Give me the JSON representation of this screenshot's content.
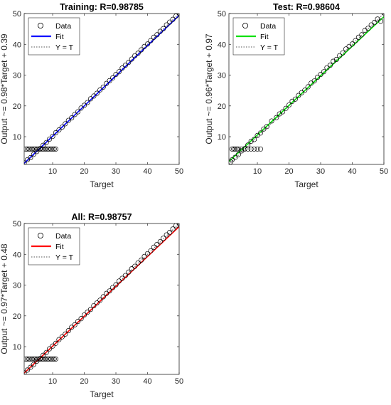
{
  "chart_data": [
    {
      "type": "scatter",
      "title": "Training: R=0.98785",
      "xlabel": "Target",
      "ylabel": "Output ~= 0.98*Target + 0.39",
      "xlim": [
        1,
        50
      ],
      "ylim": [
        1,
        50
      ],
      "xticks": [
        10,
        20,
        30,
        40,
        50
      ],
      "yticks": [
        10,
        20,
        30,
        40,
        50
      ],
      "legend": {
        "placement": "top-left",
        "entries": [
          "Data",
          "Fit",
          "Y = T"
        ]
      },
      "fit_color": "#0000ff",
      "fit": {
        "slope": 0.98,
        "intercept": 0.39
      },
      "series": [
        {
          "name": "Data",
          "x": [
            1,
            2,
            3,
            4,
            5,
            6,
            7,
            8,
            9,
            10,
            11,
            12,
            13,
            14,
            15,
            16,
            17,
            18,
            19,
            20,
            21,
            22,
            23,
            24,
            25,
            26,
            27,
            28,
            29,
            30,
            31,
            32,
            33,
            34,
            35,
            36,
            37,
            38,
            39,
            40,
            41,
            42,
            43,
            44,
            45,
            46,
            47,
            48,
            49,
            50,
            1.5,
            2,
            2.5,
            3,
            3.5,
            4,
            4.5,
            5,
            5.5,
            6,
            6.5,
            7,
            7.5,
            8,
            8.5,
            9,
            9.5,
            10,
            10.5,
            11
          ],
          "y": [
            1.5,
            2.5,
            3.2,
            4.3,
            5.2,
            6.1,
            7.2,
            8.1,
            9.2,
            10.1,
            11.3,
            12.2,
            13.1,
            14.2,
            15.3,
            16.1,
            17.2,
            18.1,
            19.3,
            20.2,
            21.1,
            22.3,
            23.2,
            24.1,
            25.2,
            26.1,
            27.3,
            28.2,
            29.1,
            30.2,
            31.1,
            32.3,
            33.2,
            34.1,
            35.2,
            36.3,
            37.1,
            38.2,
            39.3,
            40.1,
            41.2,
            42.3,
            43.1,
            44.2,
            45.1,
            46.3,
            47.2,
            48.1,
            49.2,
            50,
            6,
            6,
            6,
            6,
            6,
            6,
            6,
            6,
            6,
            6,
            6,
            6,
            6,
            6,
            6,
            6,
            6,
            6,
            6,
            6
          ]
        }
      ]
    },
    {
      "type": "scatter",
      "title": "Test: R=0.98604",
      "xlabel": "Target",
      "ylabel": "Output ~= 0.96*Target + 0.97",
      "xlim": [
        1,
        50
      ],
      "ylim": [
        1,
        50
      ],
      "xticks": [
        10,
        20,
        30,
        40,
        50
      ],
      "yticks": [
        10,
        20,
        30,
        40,
        50
      ],
      "legend": {
        "placement": "top-left",
        "entries": [
          "Data",
          "Fit",
          "Y = T"
        ]
      },
      "fit_color": "#00e000",
      "fit": {
        "slope": 0.96,
        "intercept": 0.97
      },
      "series": [
        {
          "name": "Data",
          "x": [
            1.5,
            2,
            3,
            4,
            5,
            6,
            7,
            8,
            9,
            10,
            11,
            12,
            13,
            14.5,
            16,
            17,
            18,
            19,
            20,
            21,
            22,
            23,
            24,
            25,
            26,
            27,
            28,
            29,
            30,
            31,
            32,
            33,
            34,
            35,
            36,
            37,
            38,
            39,
            40,
            41,
            42,
            43,
            44,
            45,
            46,
            47,
            48,
            49,
            50,
            2,
            2.5,
            3,
            3.5,
            4,
            5,
            6,
            7,
            8,
            9,
            10,
            11
          ],
          "y": [
            1.8,
            2.5,
            3.3,
            4.2,
            5.4,
            6.1,
            7.3,
            8.5,
            9.1,
            10.4,
            11.2,
            12.5,
            13.3,
            15.1,
            16.2,
            17.4,
            18.1,
            19.2,
            20.3,
            21.5,
            22.2,
            23.4,
            24.3,
            25.1,
            26.2,
            27.4,
            28.1,
            29.3,
            30.2,
            31.1,
            32.4,
            33.2,
            34.5,
            35.1,
            36.3,
            37.2,
            38.5,
            39.3,
            40.1,
            41.2,
            42.3,
            43.1,
            44.5,
            45.2,
            46.3,
            47.1,
            48.2,
            47.5,
            50.2,
            6,
            6,
            6,
            6,
            6,
            6,
            6,
            6,
            6,
            6,
            6,
            6
          ]
        }
      ]
    },
    {
      "type": "scatter",
      "title": "All: R=0.98757",
      "xlabel": "Target",
      "ylabel": "Output ~= 0.97*Target + 0.48",
      "xlim": [
        1,
        50
      ],
      "ylim": [
        1,
        50
      ],
      "xticks": [
        10,
        20,
        30,
        40,
        50
      ],
      "yticks": [
        10,
        20,
        30,
        40,
        50
      ],
      "legend": {
        "placement": "top-left",
        "entries": [
          "Data",
          "Fit",
          "Y = T"
        ]
      },
      "fit_color": "#ff0000",
      "fit": {
        "slope": 0.97,
        "intercept": 0.48
      },
      "series": [
        {
          "name": "Data",
          "x": [
            1,
            2,
            3,
            4,
            5,
            6,
            7,
            8,
            9,
            10,
            11,
            12,
            13,
            14,
            15,
            16,
            17,
            18,
            19,
            20,
            21,
            22,
            23,
            24,
            25,
            26,
            27,
            28,
            29,
            30,
            31,
            32,
            33,
            34,
            35,
            36,
            37,
            38,
            39,
            40,
            41,
            42,
            43,
            44,
            45,
            46,
            47,
            48,
            49,
            50,
            1.5,
            2,
            2.5,
            3,
            3.5,
            4,
            4.5,
            5,
            5.5,
            6,
            6.5,
            7,
            7.5,
            8,
            8.5,
            9,
            9.5,
            10,
            10.5,
            11
          ],
          "y": [
            1.5,
            2.4,
            3.3,
            4.2,
            5.3,
            6.1,
            7.2,
            8.1,
            9.3,
            10.2,
            11.1,
            12.3,
            13.2,
            14.1,
            15.2,
            16.3,
            17.1,
            18.2,
            19.1,
            20.3,
            21.2,
            22.1,
            23.3,
            24.2,
            25.1,
            26.2,
            27.3,
            28.1,
            29.2,
            30.1,
            31.3,
            32.2,
            33.1,
            34.2,
            35.3,
            36.1,
            37.2,
            38.1,
            39.3,
            40.2,
            41.1,
            42.3,
            43.2,
            44.1,
            45.2,
            46.3,
            47.1,
            48.2,
            49.3,
            50,
            6,
            6,
            6,
            6,
            6,
            6,
            6,
            6,
            6,
            6,
            6,
            6,
            6,
            6,
            6,
            6,
            6,
            6,
            6,
            6
          ]
        }
      ]
    }
  ]
}
